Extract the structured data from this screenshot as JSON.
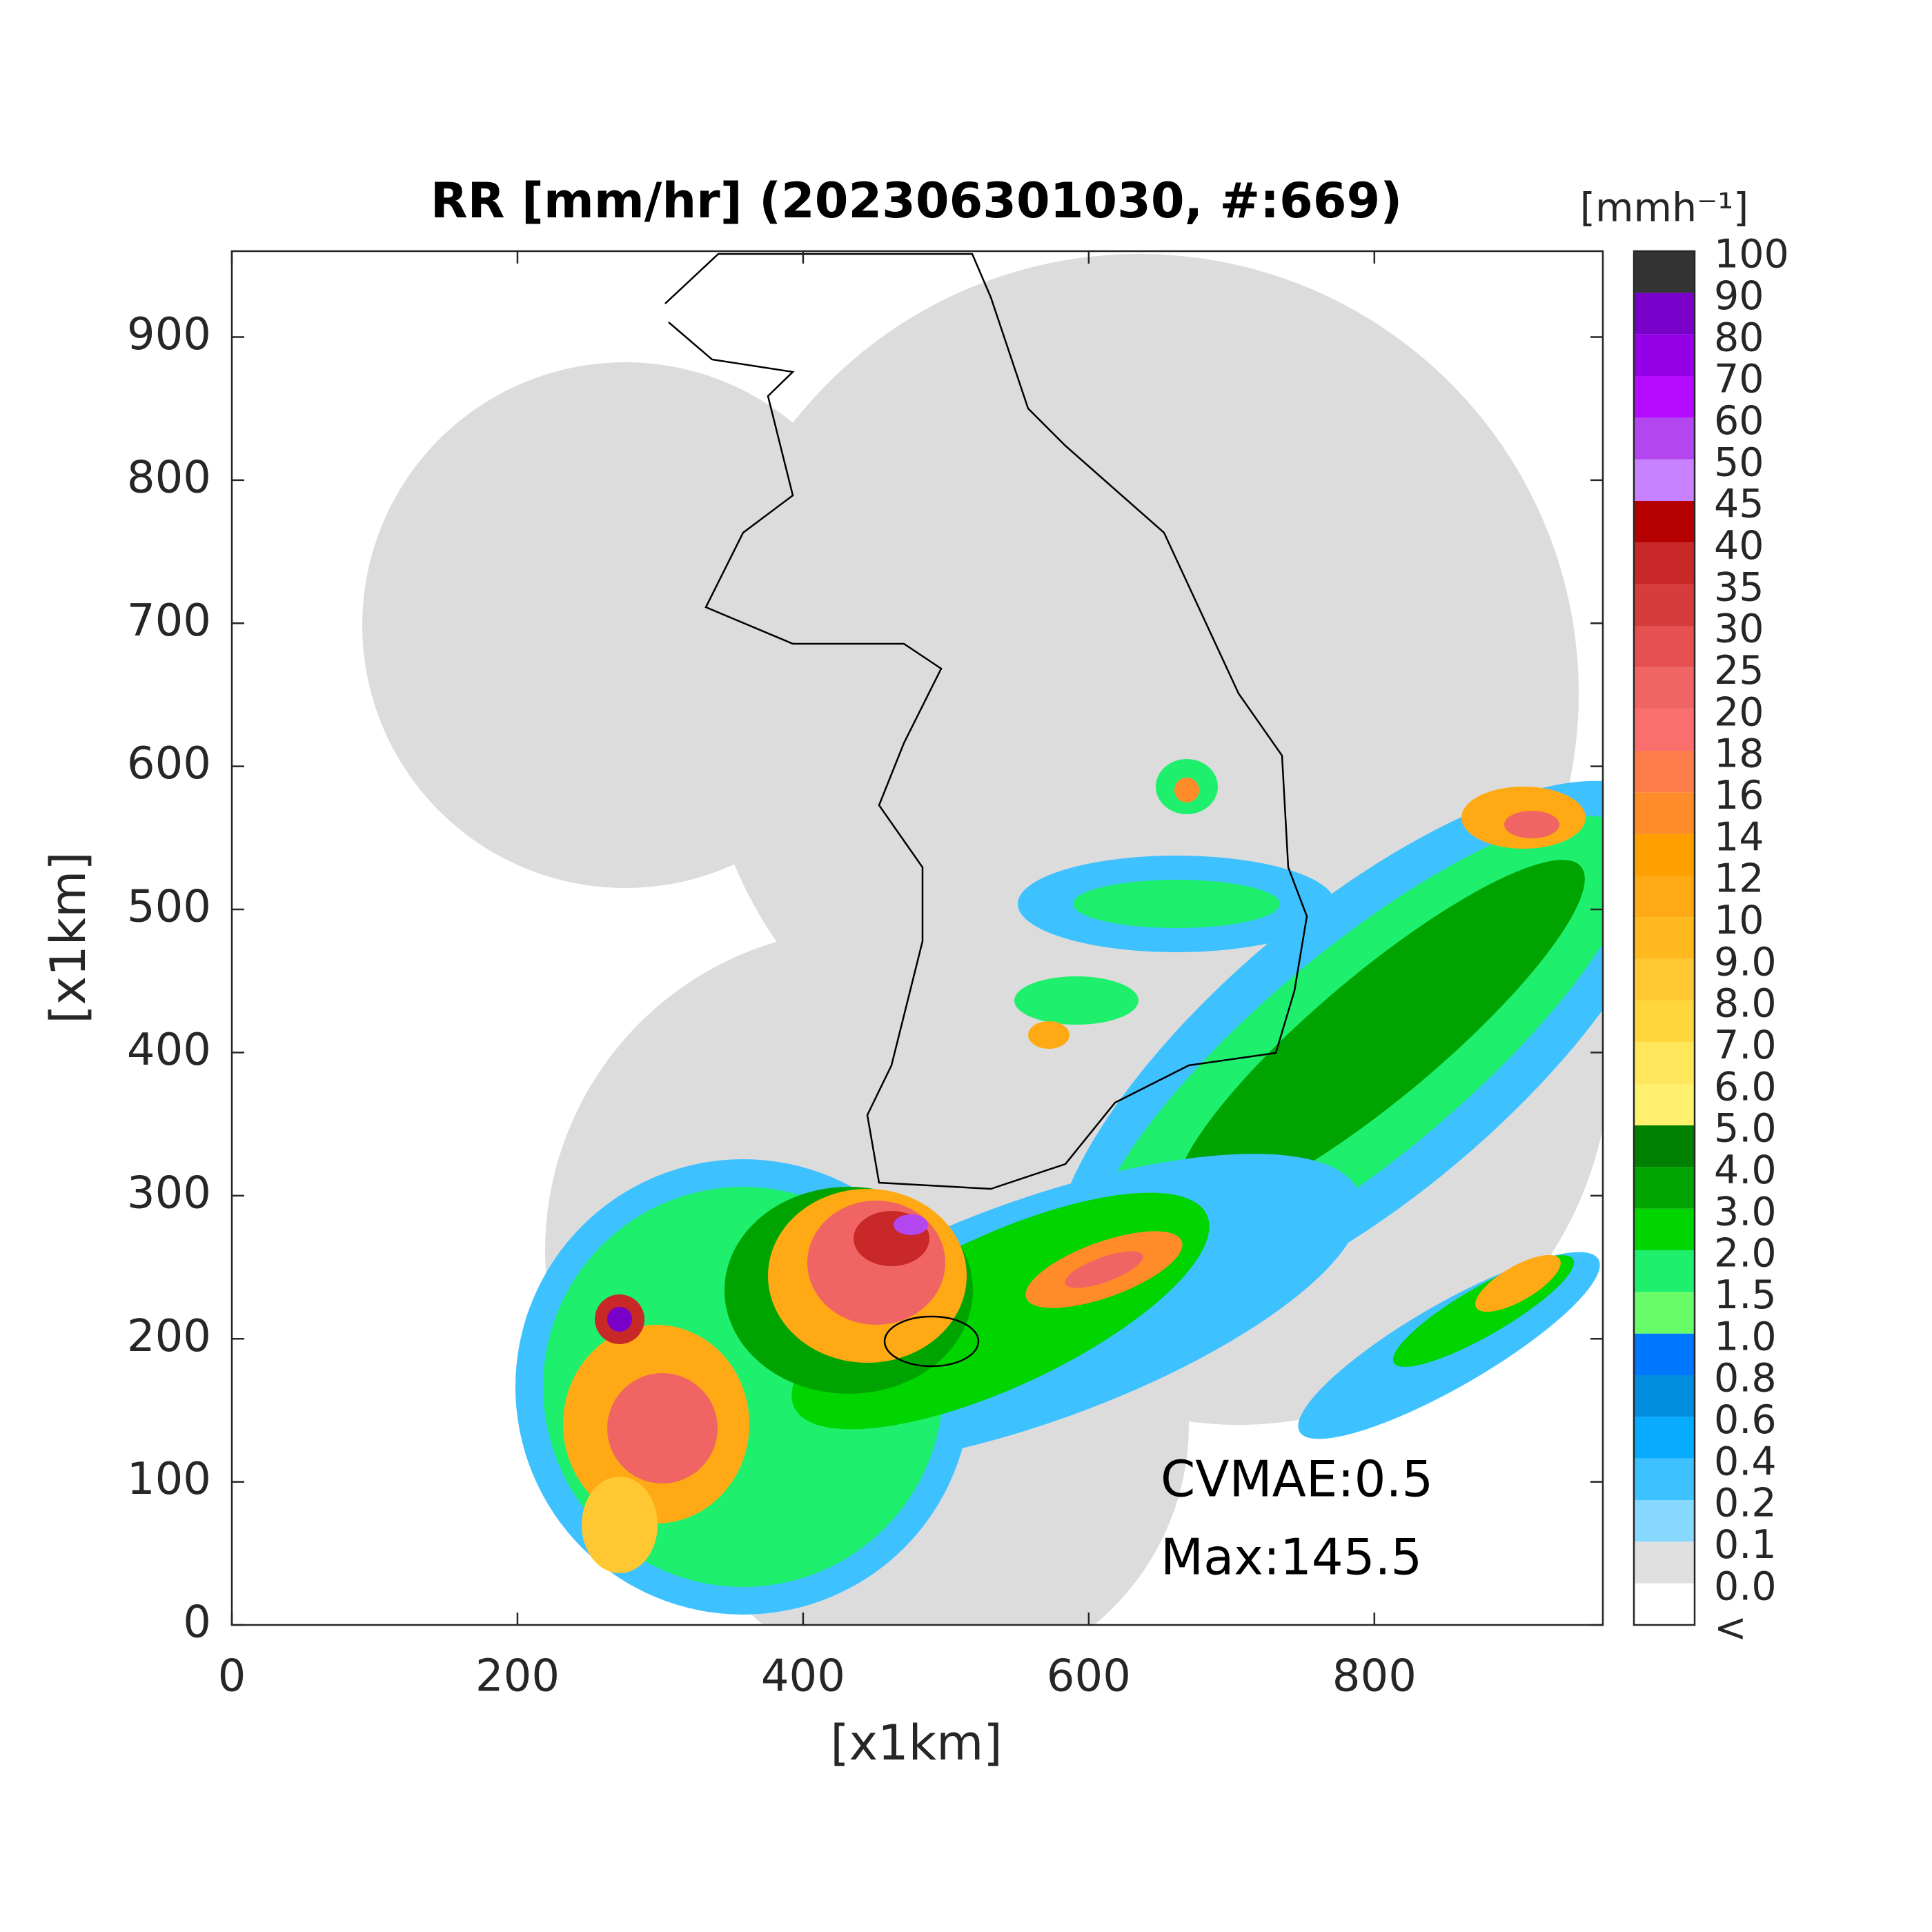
{
  "map": {
    "title": "RR [mm/hr] (202306301030, #:669)",
    "xlabel": "[x1km]",
    "ylabel": "[x1km]",
    "xlim": [
      0,
      960
    ],
    "ylim": [
      0,
      960
    ],
    "xticks": [
      0,
      200,
      400,
      600,
      800
    ],
    "yticks": [
      0,
      100,
      200,
      300,
      400,
      500,
      600,
      700,
      800,
      900
    ],
    "annotations": [
      "CVMAE:0.5",
      "Max:145.5"
    ],
    "colorbar": {
      "unit": "[mmh⁻¹]",
      "labels": [
        "<",
        "0.0",
        "0.1",
        "0.2",
        "0.4",
        "0.6",
        "0.8",
        "1.0",
        "1.5",
        "2.0",
        "3.0",
        "4.0",
        "5.0",
        "6.0",
        "7.0",
        "8.0",
        "9.0",
        "10",
        "12",
        "14",
        "16",
        "18",
        "20",
        "25",
        "30",
        "35",
        "40",
        "45",
        "50",
        "60",
        "70",
        "80",
        "90",
        "100"
      ],
      "colors": [
        "#ffffff",
        "#e0e0e0",
        "#87d9ff",
        "#3ec1ff",
        "#07abff",
        "#008dde",
        "#0077ff",
        "#69fc69",
        "#1ef06e",
        "#00d500",
        "#00a400",
        "#008000",
        "#fff06e",
        "#ffe65a",
        "#ffd73c",
        "#ffc832",
        "#ffb91e",
        "#ffaa14",
        "#ffa000",
        "#ff8c28",
        "#ff7d4b",
        "#fa6e6e",
        "#f06464",
        "#e65050",
        "#d73c3c",
        "#c82828",
        "#b40000",
        "#c882ff",
        "#b446f0",
        "#b40aff",
        "#9600e6",
        "#7800c8",
        "#333333"
      ]
    }
  }
}
